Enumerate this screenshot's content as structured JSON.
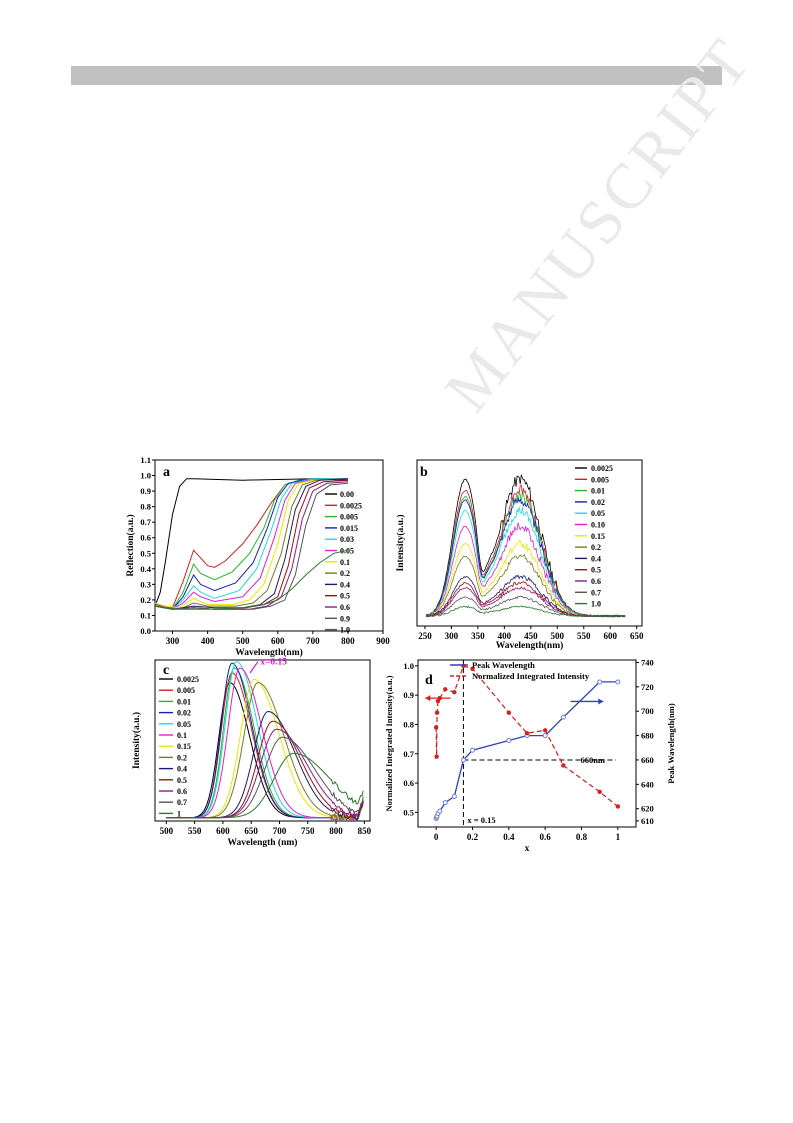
{
  "watermark": "MANUSCRIPT",
  "colors": [
    "#000000",
    "#d42020",
    "#27b827",
    "#1020c0",
    "#20d8e0",
    "#e020d0",
    "#e8e800",
    "#7a7a20",
    "#1a1a70",
    "#a01010",
    "#8a1a8a",
    "#555555",
    "#2a7a2a"
  ],
  "chart_data": [
    {
      "id": "a",
      "type": "line",
      "panel_label": "a",
      "xlabel": "Wavelength(nm)",
      "ylabel": "Reflection(a.u.)",
      "xlim": [
        250,
        900
      ],
      "ylim": [
        0.0,
        1.1
      ],
      "xticks": [
        300,
        400,
        500,
        600,
        700,
        800,
        900
      ],
      "yticks": [
        0.0,
        0.1,
        0.2,
        0.3,
        0.4,
        0.5,
        0.6,
        0.7,
        0.8,
        0.9,
        1.0,
        1.1
      ],
      "legend": "right",
      "series": [
        {
          "name": "0.00",
          "x": [
            250,
            265,
            280,
            300,
            320,
            340,
            360,
            500,
            700,
            800
          ],
          "y": [
            0.16,
            0.25,
            0.45,
            0.75,
            0.93,
            0.98,
            0.98,
            0.97,
            0.98,
            0.98
          ]
        },
        {
          "name": "0.0025",
          "x": [
            250,
            270,
            300,
            330,
            360,
            380,
            400,
            420,
            450,
            500,
            540,
            580,
            620,
            660,
            700,
            800
          ],
          "y": [
            0.18,
            0.16,
            0.15,
            0.32,
            0.52,
            0.47,
            0.42,
            0.41,
            0.45,
            0.56,
            0.68,
            0.82,
            0.94,
            0.97,
            0.98,
            0.97
          ]
        },
        {
          "name": "0.005",
          "x": [
            250,
            270,
            300,
            330,
            360,
            380,
            420,
            470,
            520,
            560,
            590,
            620,
            660,
            700,
            800
          ],
          "y": [
            0.18,
            0.16,
            0.14,
            0.25,
            0.43,
            0.37,
            0.33,
            0.38,
            0.5,
            0.66,
            0.84,
            0.94,
            0.97,
            0.98,
            0.97
          ]
        },
        {
          "name": "0.015",
          "x": [
            250,
            270,
            300,
            330,
            360,
            380,
            420,
            480,
            530,
            570,
            600,
            630,
            670,
            700,
            800
          ],
          "y": [
            0.18,
            0.16,
            0.14,
            0.22,
            0.36,
            0.3,
            0.26,
            0.31,
            0.44,
            0.66,
            0.86,
            0.95,
            0.97,
            0.98,
            0.97
          ]
        },
        {
          "name": "0.03",
          "x": [
            250,
            270,
            300,
            330,
            360,
            380,
            420,
            490,
            540,
            580,
            610,
            640,
            680,
            700,
            800
          ],
          "y": [
            0.18,
            0.16,
            0.14,
            0.2,
            0.29,
            0.25,
            0.21,
            0.26,
            0.4,
            0.64,
            0.85,
            0.95,
            0.97,
            0.98,
            0.98
          ]
        },
        {
          "name": "0.05",
          "x": [
            250,
            270,
            300,
            330,
            360,
            380,
            420,
            500,
            550,
            590,
            620,
            650,
            690,
            800
          ],
          "y": [
            0.18,
            0.16,
            0.14,
            0.18,
            0.25,
            0.22,
            0.19,
            0.22,
            0.34,
            0.6,
            0.84,
            0.95,
            0.97,
            0.98
          ]
        },
        {
          "name": "0.1",
          "x": [
            250,
            280,
            320,
            360,
            400,
            470,
            520,
            560,
            600,
            630,
            660,
            700,
            800
          ],
          "y": [
            0.18,
            0.16,
            0.15,
            0.21,
            0.17,
            0.17,
            0.2,
            0.3,
            0.56,
            0.84,
            0.95,
            0.97,
            0.98
          ]
        },
        {
          "name": "0.2",
          "x": [
            250,
            280,
            320,
            360,
            400,
            480,
            530,
            570,
            610,
            640,
            670,
            710,
            800
          ],
          "y": [
            0.17,
            0.15,
            0.14,
            0.18,
            0.16,
            0.16,
            0.18,
            0.26,
            0.5,
            0.8,
            0.94,
            0.97,
            0.98
          ]
        },
        {
          "name": "0.4",
          "x": [
            250,
            300,
            360,
            420,
            500,
            550,
            590,
            620,
            650,
            680,
            720,
            800
          ],
          "y": [
            0.16,
            0.14,
            0.16,
            0.15,
            0.15,
            0.17,
            0.24,
            0.46,
            0.78,
            0.93,
            0.97,
            0.98
          ]
        },
        {
          "name": "0.5",
          "x": [
            250,
            300,
            360,
            420,
            510,
            560,
            600,
            630,
            660,
            690,
            730,
            800
          ],
          "y": [
            0.16,
            0.14,
            0.15,
            0.14,
            0.15,
            0.17,
            0.22,
            0.42,
            0.75,
            0.92,
            0.96,
            0.97
          ]
        },
        {
          "name": "0.6",
          "x": [
            250,
            300,
            360,
            420,
            520,
            570,
            610,
            640,
            670,
            700,
            740,
            800
          ],
          "y": [
            0.16,
            0.14,
            0.15,
            0.14,
            0.14,
            0.16,
            0.22,
            0.4,
            0.72,
            0.9,
            0.95,
            0.96
          ]
        },
        {
          "name": "0.9",
          "x": [
            250,
            300,
            360,
            420,
            530,
            580,
            620,
            650,
            680,
            710,
            750,
            800
          ],
          "y": [
            0.16,
            0.14,
            0.15,
            0.14,
            0.14,
            0.16,
            0.2,
            0.36,
            0.68,
            0.88,
            0.94,
            0.95
          ]
        },
        {
          "name": "1.0",
          "x": [
            250,
            300,
            400,
            500,
            560,
            600,
            640,
            680,
            720,
            760,
            800
          ],
          "y": [
            0.16,
            0.14,
            0.14,
            0.15,
            0.17,
            0.2,
            0.27,
            0.36,
            0.44,
            0.5,
            0.52
          ]
        }
      ]
    },
    {
      "id": "b",
      "type": "line",
      "panel_label": "b",
      "xlabel": "Wavelength(nm)",
      "ylabel": "Intensity(a.u.)",
      "xlim": [
        235,
        660
      ],
      "ylim": [
        0,
        1
      ],
      "xticks": [
        250,
        300,
        350,
        400,
        450,
        500,
        550,
        600,
        650
      ],
      "legend": "right",
      "series": [
        {
          "name": "0.0025",
          "peak": 0.93
        },
        {
          "name": "0.005",
          "peak": 0.86
        },
        {
          "name": "0.01",
          "peak": 0.82
        },
        {
          "name": "0.02",
          "peak": 0.8
        },
        {
          "name": "0.05",
          "peak": 0.73
        },
        {
          "name": "0.10",
          "peak": 0.63
        },
        {
          "name": "0.15",
          "peak": 0.52
        },
        {
          "name": "0.2",
          "peak": 0.44
        },
        {
          "name": "0.4",
          "peak": 0.31
        },
        {
          "name": "0.5",
          "peak": 0.27
        },
        {
          "name": "0.6",
          "peak": 0.24
        },
        {
          "name": "0.7",
          "peak": 0.18
        },
        {
          "name": "1.0",
          "peak": 0.12
        }
      ]
    },
    {
      "id": "c",
      "type": "line",
      "panel_label": "c",
      "xlabel": "Wavelength (nm)",
      "ylabel": "Intensity(a.u.)",
      "xlim": [
        480,
        860
      ],
      "ylim": [
        0,
        1
      ],
      "xticks": [
        500,
        550,
        600,
        650,
        700,
        750,
        800,
        850
      ],
      "annotation": "x=0.15",
      "legend": "left",
      "series": [
        {
          "name": "0.0025",
          "center": 612,
          "peak": 0.84,
          "width": 38
        },
        {
          "name": "0.005",
          "center": 616,
          "peak": 0.9,
          "width": 38
        },
        {
          "name": "0.01",
          "center": 620,
          "peak": 0.93,
          "width": 38
        },
        {
          "name": "0.02",
          "center": 616,
          "peak": 0.96,
          "width": 38
        },
        {
          "name": "0.05",
          "center": 624,
          "peak": 0.97,
          "width": 40
        },
        {
          "name": "0.1",
          "center": 630,
          "peak": 0.93,
          "width": 42
        },
        {
          "name": "0.15",
          "center": 655,
          "peak": 0.86,
          "width": 48
        },
        {
          "name": "0.2",
          "center": 662,
          "peak": 0.84,
          "width": 50
        },
        {
          "name": "0.4",
          "center": 680,
          "peak": 0.66,
          "width": 52
        },
        {
          "name": "0.5",
          "center": 688,
          "peak": 0.6,
          "width": 54
        },
        {
          "name": "0.6",
          "center": 695,
          "peak": 0.55,
          "width": 58
        },
        {
          "name": "0.7",
          "center": 705,
          "peak": 0.5,
          "width": 62
        },
        {
          "name": "1",
          "center": 725,
          "peak": 0.4,
          "width": 70
        }
      ]
    },
    {
      "id": "d",
      "type": "line",
      "panel_label": "d",
      "xlabel": "x",
      "ylabel": "Normalized Integrated Intensity(a.u.)",
      "y2label": "Peak Wavelength(nm)",
      "xlim": [
        -0.1,
        1.1
      ],
      "ylim": [
        0.45,
        1.02
      ],
      "y2lim": [
        605,
        742
      ],
      "xticks": [
        0.0,
        0.2,
        0.4,
        0.6,
        0.8,
        1.0
      ],
      "yticks": [
        0.5,
        0.6,
        0.7,
        0.8,
        0.9,
        1.0
      ],
      "y2ticks": [
        610,
        620,
        640,
        660,
        680,
        700,
        720,
        740
      ],
      "legend": "top",
      "annotations": [
        "660nm",
        "x = 0.15"
      ],
      "series": [
        {
          "name": "Peak Wavelength",
          "axis": "right",
          "x": [
            0.0,
            0.0025,
            0.005,
            0.01,
            0.02,
            0.05,
            0.1,
            0.15,
            0.2,
            0.4,
            0.5,
            0.6,
            0.7,
            0.9,
            1.0
          ],
          "y": [
            612,
            613,
            614,
            616,
            618,
            625,
            630,
            660,
            668,
            676,
            680,
            680,
            695,
            724,
            724
          ]
        },
        {
          "name": "Normalized Integrated Intensity",
          "axis": "left",
          "x": [
            0.0,
            0.0025,
            0.005,
            0.01,
            0.02,
            0.05,
            0.1,
            0.15,
            0.2,
            0.4,
            0.5,
            0.6,
            0.7,
            0.9,
            1.0
          ],
          "y": [
            0.79,
            0.69,
            0.84,
            0.88,
            0.89,
            0.92,
            0.91,
            1.0,
            0.99,
            0.84,
            0.77,
            0.78,
            0.66,
            0.57,
            0.52
          ]
        }
      ]
    }
  ]
}
